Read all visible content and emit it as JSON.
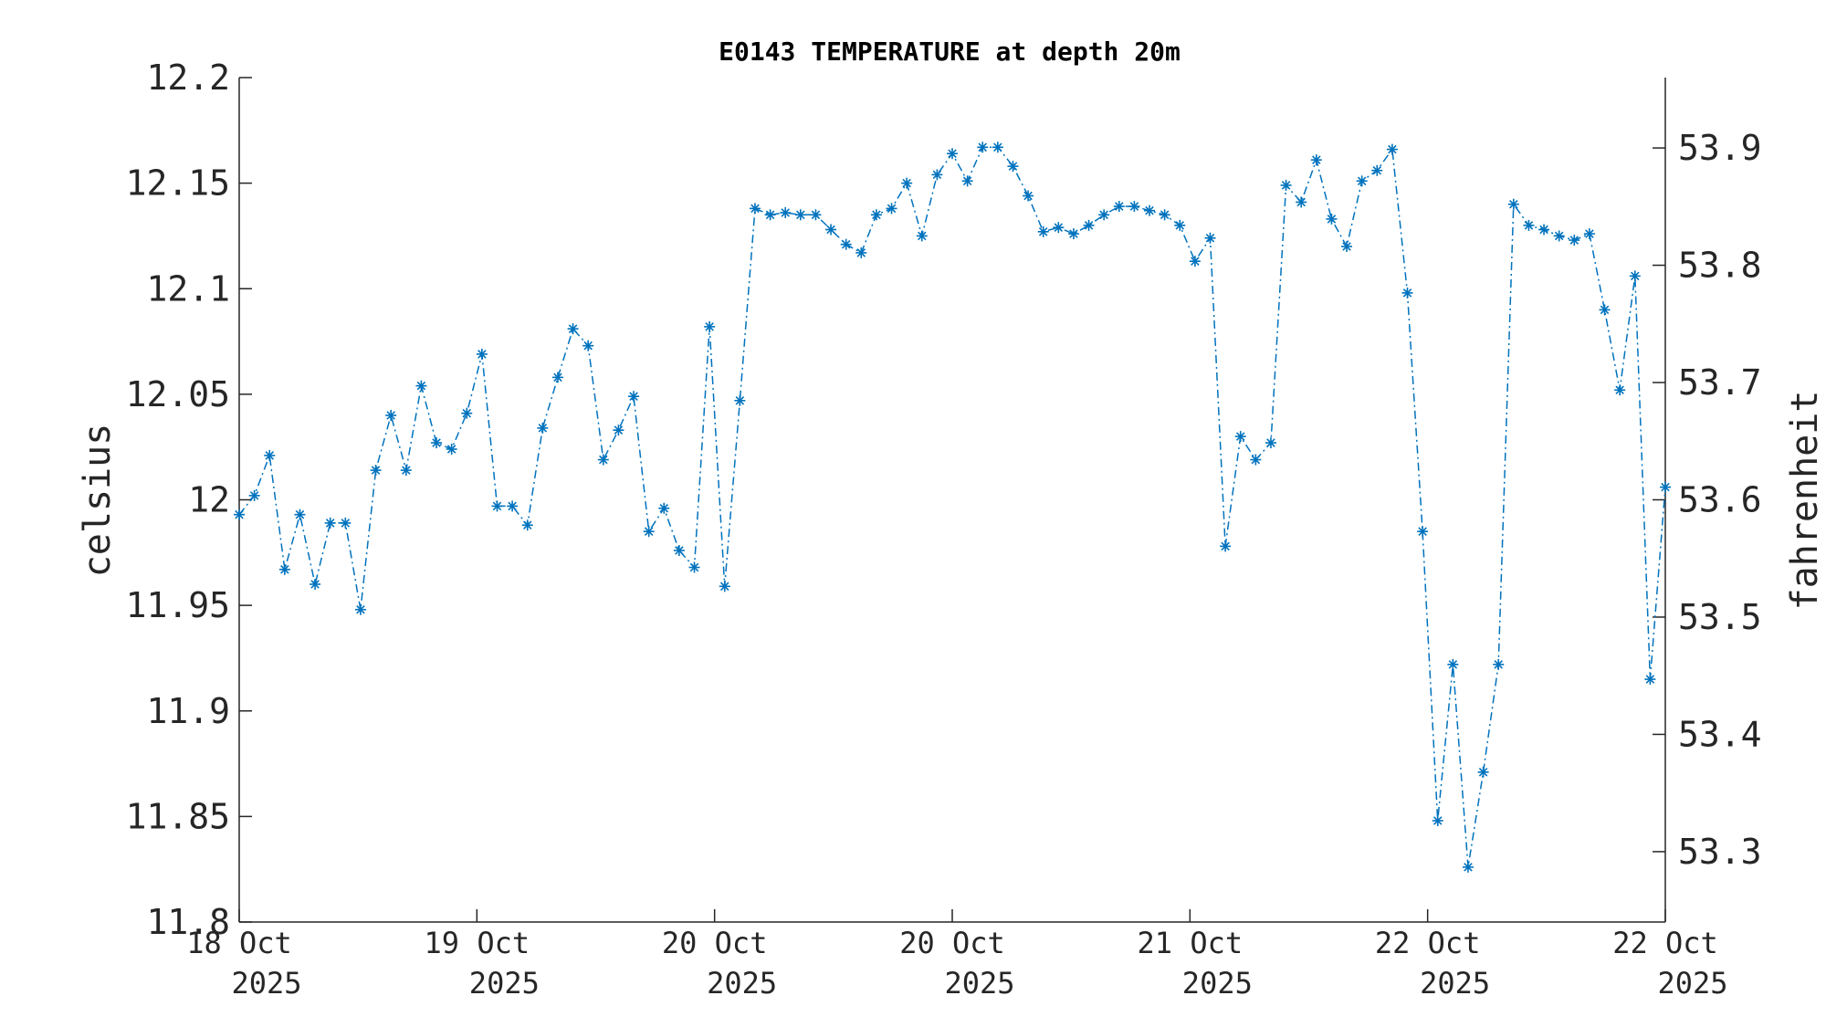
{
  "chart_data": {
    "type": "line",
    "title": "E0143 TEMPERATURE at depth 20m",
    "ylabel": "celsius",
    "ylabel_right": "fahrenheit",
    "xlabel": "",
    "ylim": [
      11.8,
      12.2
    ],
    "ylim_right": [
      53.24,
      53.96
    ],
    "yticks": [
      "12.2",
      "12.15",
      "12.1",
      "12.05",
      "12",
      "11.95",
      "11.9",
      "11.85",
      "11.8"
    ],
    "yticks_right": [
      "53.9",
      "53.8",
      "53.7",
      "53.6",
      "53.5",
      "53.4",
      "53.3"
    ],
    "xticks": [
      {
        "day": "18 Oct",
        "year": "2025"
      },
      {
        "day": "19 Oct",
        "year": "2025"
      },
      {
        "day": "20 Oct",
        "year": "2025"
      },
      {
        "day": "20 Oct",
        "year": "2025"
      },
      {
        "day": "21 Oct",
        "year": "2025"
      },
      {
        "day": "22 Oct",
        "year": "2025"
      },
      {
        "day": "22 Oct",
        "year": "2025"
      }
    ],
    "grid": false,
    "line_style": "dash-dot",
    "marker": "asterisk",
    "color": "#0072bd",
    "series": [
      {
        "values": [
          11.993,
          12.002,
          12.021,
          11.967,
          11.993,
          11.96,
          11.989,
          11.989,
          11.948,
          12.014,
          12.04,
          12.014,
          12.054,
          12.027,
          12.024,
          12.041,
          12.069,
          11.997,
          11.997,
          11.988,
          12.034,
          12.058,
          12.081,
          12.073,
          12.019,
          12.033,
          12.049,
          11.985,
          11.996,
          11.976,
          11.968,
          12.082,
          11.959,
          12.047,
          12.138,
          12.135,
          12.136,
          12.135,
          12.135,
          12.128,
          12.121,
          12.117,
          12.135,
          12.138,
          12.15,
          12.125,
          12.154,
          12.164,
          12.151,
          12.167,
          12.167,
          12.158,
          12.144,
          12.127,
          12.129,
          12.126,
          12.13,
          12.135,
          12.139,
          12.139,
          12.137,
          12.135,
          12.13,
          12.113,
          12.124,
          11.978,
          12.03,
          12.019,
          12.027,
          12.149,
          12.141,
          12.161,
          12.133,
          12.12,
          12.151,
          12.156,
          12.166,
          12.098,
          11.985,
          11.848,
          11.922,
          11.826,
          11.871,
          11.922,
          12.14,
          12.13,
          12.128,
          12.125,
          12.123,
          12.126,
          12.09,
          12.052,
          12.106,
          11.915,
          12.006
        ]
      }
    ]
  }
}
